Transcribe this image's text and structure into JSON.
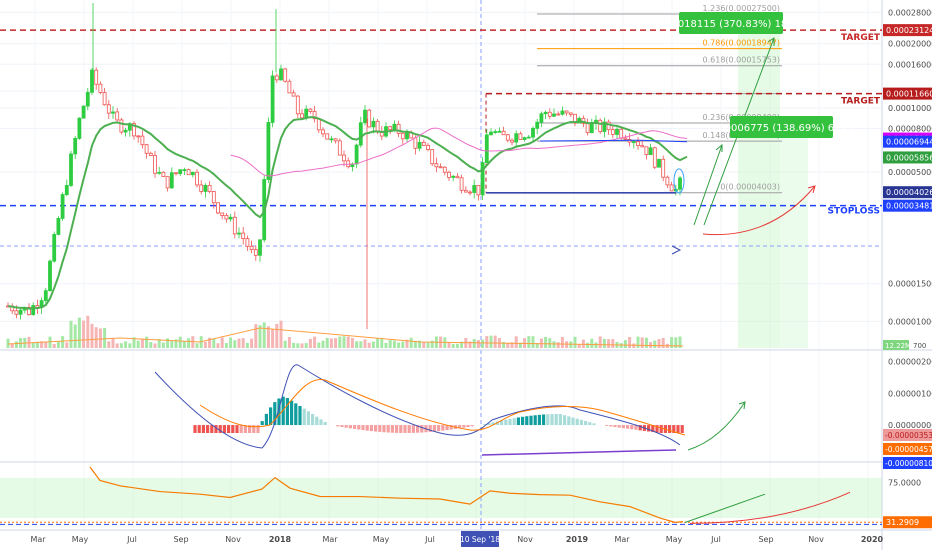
{
  "chart_data": {
    "type": "candlestick",
    "price_axis": {
      "scale": "log",
      "range": [
        7.5e-06,
        0.00032
      ],
      "ticks": [
        {
          "v": 0.00028,
          "label": "0.00028000"
        },
        {
          "v": 0.0002,
          "label": "0.00020000"
        },
        {
          "v": 0.00016,
          "label": "0.00016000"
        },
        {
          "v": 0.00012,
          "label": "0.00012000"
        },
        {
          "v": 0.0001,
          "label": "0.00010000"
        },
        {
          "v": 8e-05,
          "label": "0.00008000"
        },
        {
          "v": 5e-05,
          "label": "0.00005000"
        },
        {
          "v": 1.5e-05,
          "label": "0.00001500"
        },
        {
          "v": 1e-05,
          "label": "0.00001000"
        }
      ]
    },
    "price_badges": [
      {
        "v": 0.00023124,
        "label": "0.00023124",
        "color": "#c62828"
      },
      {
        "v": 0.0001166,
        "label": "0.00011660",
        "color": "#b71c1c"
      },
      {
        "v": 7.18e-05,
        "label": "0.00007180",
        "color": "#d500f9"
      },
      {
        "v": 6.944e-05,
        "label": "0.00006944",
        "color": "#1e40ff"
      },
      {
        "v": 5.856e-05,
        "label": "0.00005856",
        "color": "#2e9e3e"
      },
      {
        "v": 4.026e-05,
        "label": "0.00004026",
        "color": "#283593"
      },
      {
        "v": 3.481e-05,
        "label": "0.00003481",
        "color": "#1e40ff"
      }
    ],
    "levels": [
      {
        "v": 0.00023124,
        "tag": "TARGET",
        "color": "#c62828"
      },
      {
        "v": 0.0001166,
        "tag": "TARGET",
        "color": "#b71c1c"
      },
      {
        "v": 3.481e-05,
        "tag": "STOPLOSS",
        "color": "#1e40ff"
      }
    ],
    "fib_levels": [
      {
        "v": 0.000275,
        "label": "1.236(0.00027500)",
        "color": "#9e9e9e"
      },
      {
        "v": 0.00018947,
        "label": "0.786(0.00018947)",
        "color": "#ff9800"
      },
      {
        "v": 0.00015753,
        "label": "0.618(0.00015753)",
        "color": "#9e9e9e"
      },
      {
        "v": 0.0001166,
        "label": "",
        "color": "#9e9e9e"
      },
      {
        "v": 8.49e-05,
        "label": "0.236(0.00008490)",
        "color": "#9e9e9e"
      },
      {
        "v": 6.987e-05,
        "label": "0.148(0.00006987)",
        "color": "#9e9e9e"
      },
      {
        "v": 4.003e-05,
        "label": "0(0.00004003)",
        "color": "#9e9e9e"
      }
    ],
    "callouts": [
      {
        "text": "0.00018115 (370.83%) 18115"
      },
      {
        "text": "0.00006775 (138.69%) 6775"
      }
    ],
    "volume_badge": "12.22M",
    "volume_tail": "700",
    "macd_axis": {
      "range": [
        -1.1e-06,
        2.3e-06
      ],
      "ticks": [
        {
          "v": 2e-06,
          "label": "0.00000200"
        },
        {
          "v": 1e-06,
          "label": "0.00000100"
        },
        {
          "v": 0.0,
          "label": "0.00000000"
        }
      ],
      "badges": [
        {
          "v": -3.53e-06,
          "label": "-0.00000353",
          "color": "#ef9a9a",
          "text_color": "#b71c1c"
        },
        {
          "v": -4.57e-06,
          "label": "-0.00000457",
          "color": "#ff6d00",
          "text_color": "#ffffff"
        },
        {
          "v": -8.1e-06,
          "label": "-0.00000810",
          "color": "#1e40ff",
          "text_color": "#ffffff"
        }
      ]
    },
    "rsi_axis": {
      "range": [
        25,
        95
      ],
      "ticks": [
        {
          "v": 75,
          "label": "75.0000"
        }
      ],
      "badge": {
        "v": 31.2909,
        "label": "31.2909"
      }
    },
    "x_labels": [
      "Mar",
      "May",
      "Jul",
      "Sep",
      "Nov",
      "2018",
      "Mar",
      "May",
      "Jul",
      "10 Sep '18",
      "Nov",
      "2019",
      "Mar",
      "May",
      "Jul",
      "Sep",
      "Nov",
      "2020"
    ],
    "colors": {
      "up": "#2ecc40",
      "down": "#ef5350",
      "ema": "#4caf50",
      "grid": "#f0f3fa",
      "crosshair": "#8a9fff"
    }
  }
}
